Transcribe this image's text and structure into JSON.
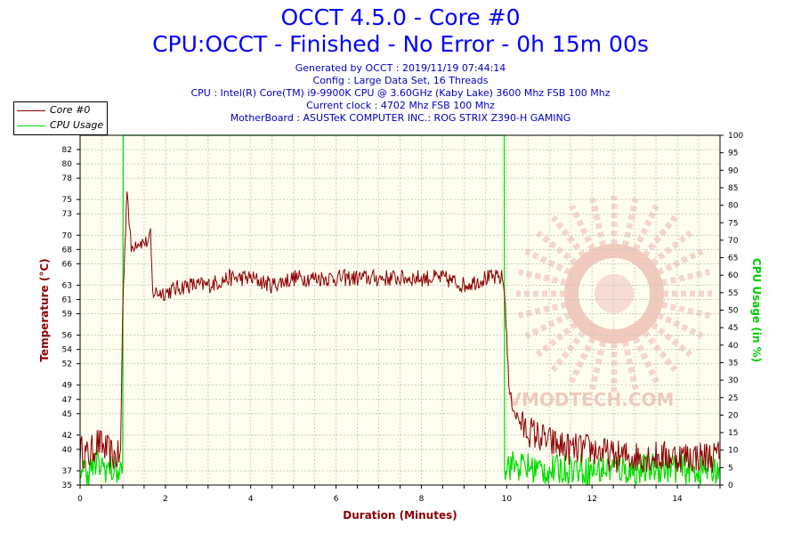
{
  "header": {
    "title": "OCCT 4.5.0 - Core #0",
    "subtitle": "CPU:OCCT - Finished - No Error - 0h 15m 00s",
    "info_lines": [
      "Generated by OCCT : 2019/11/19 07:44:14",
      "Config : Large Data Set, 16 Threads",
      "CPU : Intel(R) Core(TM) i9-9900K CPU @ 3.60GHz (Kaby Lake) 3600 Mhz FSB 100 Mhz",
      "Current clock : 4702 Mhz FSB 100 Mhz",
      "MotherBoard : ASUSTeK COMPUTER INC.: ROG STRIX Z390-H GAMING"
    ]
  },
  "watermark": "VMODTECH.COM",
  "colors": {
    "temperature": "#8b0000",
    "cpu_usage": "#00dd00",
    "plot_bg": "#fffff0",
    "text_blue": "#0000c0"
  },
  "chart_data": {
    "type": "line",
    "title": "OCCT 4.5.0 - Core #0",
    "subtitle": "CPU:OCCT - Finished - No Error - 0h 15m 00s",
    "xlabel": "Duration (Minutes)",
    "ylabel_left": "Temperature (°C)",
    "ylabel_right": "CPU Usage (in %)",
    "xlim": [
      0,
      15
    ],
    "ylim_left": [
      35,
      84
    ],
    "ylim_right": [
      0,
      100
    ],
    "grid": true,
    "legend_position": "top-left",
    "x_ticks": [
      0,
      2,
      4,
      6,
      8,
      10,
      12,
      14
    ],
    "y_left_ticks": [
      35,
      37,
      40,
      42,
      45,
      47,
      49,
      52,
      54,
      56,
      59,
      61,
      63,
      66,
      68,
      70,
      73,
      75,
      78,
      80,
      82
    ],
    "y_right_ticks": [
      0,
      5,
      10,
      15,
      20,
      25,
      30,
      35,
      40,
      45,
      50,
      55,
      60,
      65,
      70,
      75,
      80,
      85,
      90,
      95,
      100
    ],
    "series": [
      {
        "name": "Core #0",
        "axis": "left",
        "color": "#8b0000",
        "x": [
          0,
          0.2,
          0.4,
          0.6,
          0.8,
          0.95,
          1.0,
          1.05,
          1.1,
          1.15,
          1.2,
          1.3,
          1.4,
          1.5,
          1.6,
          1.65,
          1.7,
          2.0,
          2.5,
          3.0,
          3.5,
          4.0,
          4.5,
          5.0,
          5.5,
          6.0,
          6.5,
          7.0,
          7.5,
          8.0,
          8.5,
          9.0,
          9.5,
          9.9,
          9.95,
          10.0,
          10.05,
          10.1,
          10.2,
          10.4,
          10.7,
          11.0,
          11.5,
          12.0,
          12.5,
          13.0,
          13.5,
          14.0,
          14.5,
          15.0
        ],
        "y": [
          40,
          39,
          41,
          40,
          39,
          39,
          60,
          68,
          77,
          72,
          68,
          69,
          69,
          69,
          69,
          70,
          62,
          62,
          63,
          63,
          64,
          64,
          63,
          64,
          64,
          64,
          64,
          64,
          64,
          64,
          64,
          63,
          64,
          64,
          62,
          56,
          49,
          47,
          45,
          43,
          42,
          41,
          40,
          40,
          39,
          39,
          39,
          39,
          39,
          39
        ]
      },
      {
        "name": "CPU Usage",
        "axis": "right",
        "color": "#00dd00",
        "x": [
          0,
          0.2,
          0.4,
          0.6,
          0.8,
          0.95,
          1.0,
          1.01,
          2.0,
          4.0,
          6.0,
          8.0,
          9.0,
          9.94,
          9.95,
          10.0,
          10.5,
          11.0,
          11.5,
          12.0,
          12.5,
          13.0,
          13.5,
          14.0,
          14.5,
          15.0
        ],
        "y": [
          5,
          4,
          6,
          5,
          4,
          4,
          5,
          100,
          100,
          100,
          100,
          100,
          100,
          100,
          5,
          6,
          5,
          4,
          5,
          4,
          5,
          4,
          5,
          5,
          4,
          5
        ]
      }
    ]
  }
}
